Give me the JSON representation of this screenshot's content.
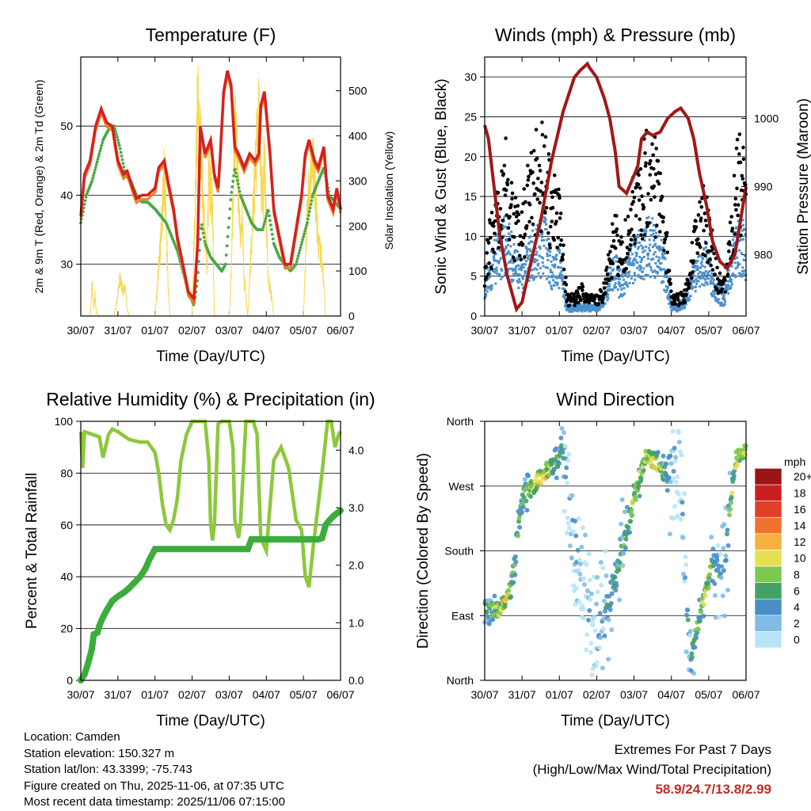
{
  "colors": {
    "temp2m": "#d62020",
    "temp9m": "#f08020",
    "dew": "#48a848",
    "solar": "#f8d850",
    "wind": "#4a90cc",
    "gust": "#000000",
    "pressure": "#a01818",
    "rh": "#8cc83c",
    "precip": "#3cac3c",
    "extremes": "#c62828"
  },
  "chart_data": [
    {
      "id": "temperature",
      "type": "line",
      "title": "Temperature (F)",
      "xlabel": "Time (Day/UTC)",
      "ylabel": "2m & 9m T (Red, Orange) & 2m Td (Green)",
      "y2label": "Solar Insolation (Yellow)",
      "x_ticks": [
        "30/07",
        "31/07",
        "01/07",
        "02/07",
        "03/07",
        "04/07",
        "05/07",
        "06/07"
      ],
      "ylim": [
        22.5,
        60
      ],
      "y_ticks": [
        30,
        40,
        50
      ],
      "y2lim": [
        0,
        575
      ],
      "y2_ticks": [
        0,
        100,
        200,
        300,
        400,
        500
      ],
      "series": [
        {
          "name": "2m T",
          "x": [
            0,
            0.1,
            0.25,
            0.4,
            0.55,
            0.7,
            0.85,
            1.0,
            1.15,
            1.25,
            1.4,
            1.5,
            1.65,
            1.8,
            2.0,
            2.1,
            2.25,
            2.35,
            2.5,
            2.6,
            2.75,
            2.9,
            3.05,
            3.15,
            3.22,
            3.35,
            3.5,
            3.6,
            3.7,
            3.75,
            3.85,
            3.95,
            4.05,
            4.15,
            4.25,
            4.4,
            4.55,
            4.7,
            4.8,
            4.85,
            4.95,
            5.1,
            5.2,
            5.35,
            5.5,
            5.65,
            5.8,
            5.95,
            6.05,
            6.15,
            6.3,
            6.4,
            6.55,
            6.65,
            6.8,
            6.9,
            7.0
          ],
          "values": [
            37,
            43,
            45,
            50,
            52.5,
            50.5,
            50,
            45,
            43,
            43.5,
            41,
            39.5,
            40,
            40,
            41,
            44,
            45,
            42,
            38,
            34,
            30,
            26,
            25,
            33,
            50,
            46,
            48,
            43,
            41,
            45,
            55,
            58,
            56,
            47,
            46,
            44,
            46,
            45,
            46,
            53,
            55,
            46,
            38,
            34,
            30,
            30,
            35,
            40,
            46,
            48,
            45,
            44,
            47,
            40,
            38,
            41,
            38
          ]
        },
        {
          "name": "2m Td",
          "x": [
            0,
            0.15,
            0.3,
            0.45,
            0.6,
            0.75,
            0.9,
            1.05,
            1.2,
            1.35,
            1.5,
            1.65,
            1.8,
            2.0,
            2.15,
            2.3,
            2.45,
            2.6,
            2.75,
            2.9,
            3.05,
            3.15,
            3.25,
            3.35,
            3.5,
            3.65,
            3.8,
            3.9,
            4.05,
            4.15,
            4.3,
            4.45,
            4.6,
            4.75,
            4.9,
            5.05,
            5.2,
            5.35,
            5.5,
            5.65,
            5.8,
            5.95,
            6.1,
            6.25,
            6.4,
            6.55,
            6.7,
            6.85,
            7.0
          ],
          "values": [
            36,
            40,
            42,
            45,
            48,
            49.5,
            50,
            47,
            43,
            42,
            40,
            39,
            39,
            38,
            37,
            36,
            34,
            32,
            29,
            26,
            24,
            28,
            36,
            33,
            31,
            30,
            29,
            30,
            40,
            44,
            40,
            38,
            36,
            35,
            35,
            38,
            33,
            31,
            30,
            29,
            30,
            33,
            36,
            40,
            42,
            44,
            40,
            39,
            38
          ]
        },
        {
          "name": "Solar",
          "axis": "y2",
          "x": [
            0,
            0.25,
            0.28,
            0.3,
            0.35,
            0.38,
            0.42,
            0.5,
            0.9,
            1.0,
            1.05,
            1.15,
            1.2,
            1.25,
            1.3,
            1.5,
            1.8,
            2.0,
            2.15,
            2.2,
            2.25,
            2.3,
            2.35,
            2.4,
            2.7,
            3.0,
            3.05,
            3.15,
            3.25,
            3.3,
            3.4,
            3.45,
            3.55,
            3.6,
            3.8,
            4.0,
            4.05,
            4.15,
            4.25,
            4.3,
            4.35,
            4.4,
            4.5,
            4.6,
            4.7,
            4.8,
            4.85,
            4.9,
            4.95,
            5.05,
            5.15,
            5.2,
            5.3,
            5.35,
            5.5,
            6.0,
            6.1,
            6.25,
            6.4,
            6.5,
            6.6,
            6.7,
            7.0
          ],
          "values": [
            0,
            0,
            40,
            100,
            20,
            60,
            10,
            0,
            0,
            60,
            100,
            70,
            80,
            20,
            0,
            0,
            0,
            0,
            200,
            300,
            400,
            250,
            100,
            0,
            0,
            0,
            200,
            580,
            450,
            300,
            150,
            400,
            300,
            0,
            0,
            0,
            100,
            540,
            350,
            200,
            300,
            100,
            0,
            200,
            400,
            550,
            400,
            300,
            450,
            100,
            50,
            0,
            0,
            0,
            0,
            0,
            300,
            450,
            200,
            150,
            0,
            0,
            0
          ]
        }
      ]
    },
    {
      "id": "winds",
      "type": "scatter",
      "title": "Winds (mph) & Pressure (mb)",
      "xlabel": "Time (Day/UTC)",
      "ylabel": "Sonic Wind & Gust (Blue, Black)",
      "y2label": "Station Pressure (Maroon)",
      "x_ticks": [
        "30/07",
        "31/07",
        "01/07",
        "02/07",
        "03/07",
        "04/07",
        "05/07",
        "06/07"
      ],
      "ylim": [
        0,
        32.5
      ],
      "y_ticks": [
        0,
        5,
        10,
        15,
        20,
        25,
        30
      ],
      "y2lim": [
        971,
        1009
      ],
      "y2_ticks": [
        980,
        990,
        1000
      ],
      "series": [
        {
          "name": "Pressure",
          "axis": "y2",
          "x": [
            0,
            0.1,
            0.25,
            0.4,
            0.6,
            0.85,
            1.0,
            1.2,
            1.5,
            1.8,
            2.1,
            2.4,
            2.55,
            2.75,
            2.8,
            3.0,
            3.2,
            3.35,
            3.5,
            3.6,
            3.8,
            3.95,
            4.1,
            4.2,
            4.35,
            4.5,
            4.7,
            4.9,
            5.1,
            5.25,
            5.45,
            5.6,
            5.75,
            5.95,
            6.1,
            6.3,
            6.5,
            6.7,
            6.85,
            7.0
          ],
          "values": [
            999,
            997,
            990,
            983,
            977,
            972,
            973,
            978,
            985,
            994,
            1001,
            1006,
            1007,
            1008,
            1007.5,
            1006,
            1003,
            1000,
            995,
            990,
            989,
            991,
            993,
            997,
            998,
            997.5,
            998,
            1000,
            1001,
            1001.5,
            1000,
            997,
            992,
            987,
            982,
            979,
            978,
            980,
            985,
            990
          ]
        },
        {
          "name": "Wind mean",
          "x": [
            0,
            0.2,
            0.4,
            0.6,
            0.8,
            1.0,
            1.2,
            1.4,
            1.6,
            1.8,
            2.0,
            2.2,
            2.4,
            2.6,
            2.8,
            3.0,
            3.2,
            3.4,
            3.5,
            3.6,
            3.8,
            4.0,
            4.2,
            4.4,
            4.6,
            4.8,
            5.0,
            5.2,
            5.4,
            5.6,
            5.8,
            6.0,
            6.2,
            6.4,
            6.6,
            6.8,
            7.0
          ],
          "values": [
            4,
            6,
            8,
            9,
            6,
            5,
            7,
            8,
            9,
            6,
            6,
            1,
            1,
            1,
            1,
            1,
            2,
            5,
            6,
            4,
            5,
            7,
            8,
            9,
            8,
            6,
            1,
            1,
            2,
            5,
            7,
            6,
            3,
            2,
            6,
            9,
            8
          ]
        },
        {
          "name": "Gust mean",
          "x": [
            0,
            0.2,
            0.4,
            0.6,
            0.8,
            1.0,
            1.2,
            1.4,
            1.6,
            1.8,
            2.0,
            2.2,
            2.4,
            2.6,
            2.8,
            3.0,
            3.2,
            3.4,
            3.5,
            3.6,
            3.8,
            4.0,
            4.2,
            4.4,
            4.6,
            4.8,
            5.0,
            5.2,
            5.4,
            5.6,
            5.8,
            6.0,
            6.2,
            6.4,
            6.6,
            6.8,
            7.0
          ],
          "values": [
            6,
            10,
            14,
            17,
            11,
            10,
            15,
            17,
            18,
            12,
            14,
            2,
            2,
            3,
            2,
            2,
            3,
            8,
            10,
            7,
            9,
            13,
            15,
            18,
            16,
            12,
            2,
            2,
            3,
            8,
            12,
            11,
            5,
            3,
            10,
            17,
            14
          ]
        }
      ]
    },
    {
      "id": "humidity",
      "type": "line",
      "title": "Relative Humidity (%) & Precipitation (in)",
      "xlabel": "Time (Day/UTC)",
      "ylabel": "Percent & Total Rainfall",
      "x_ticks": [
        "30/07",
        "31/07",
        "01/07",
        "02/07",
        "03/07",
        "04/07",
        "05/07",
        "06/07"
      ],
      "ylim": [
        0,
        100
      ],
      "y_ticks": [
        0,
        20,
        40,
        60,
        80,
        100
      ],
      "y2lim": [
        0,
        4.5
      ],
      "y2_ticks": [
        "0.0",
        "1.0",
        "2.0",
        "3.0",
        "4.0"
      ],
      "series": [
        {
          "name": "RH",
          "x": [
            0,
            0.05,
            0.1,
            0.3,
            0.5,
            0.6,
            0.75,
            0.85,
            1.0,
            1.3,
            1.6,
            1.8,
            2.0,
            2.1,
            2.2,
            2.3,
            2.4,
            2.5,
            2.6,
            2.7,
            2.85,
            3.0,
            3.2,
            3.35,
            3.45,
            3.5,
            3.55,
            3.6,
            3.7,
            3.8,
            3.9,
            4.0,
            4.1,
            4.15,
            4.25,
            4.3,
            4.45,
            4.55,
            4.65,
            4.75,
            4.85,
            5.0,
            5.2,
            5.4,
            5.6,
            5.8,
            5.95,
            6.05,
            6.15,
            6.25,
            6.35,
            6.5,
            6.65,
            6.75,
            6.85,
            6.95,
            7.0
          ],
          "values": [
            96,
            82,
            96,
            95,
            94,
            86,
            95,
            97,
            96,
            93,
            92,
            92,
            88,
            80,
            68,
            60,
            58,
            62,
            70,
            85,
            95,
            100,
            100,
            100,
            85,
            60,
            54,
            60,
            99,
            100,
            100,
            100,
            90,
            62,
            55,
            60,
            100,
            100,
            100,
            95,
            55,
            50,
            85,
            90,
            82,
            62,
            58,
            40,
            36,
            50,
            62,
            80,
            100,
            100,
            90,
            95,
            96
          ]
        },
        {
          "name": "Precip",
          "axis": "y2",
          "x": [
            0,
            0.1,
            0.2,
            0.3,
            0.35,
            0.45,
            0.5,
            0.6,
            0.7,
            0.85,
            1.0,
            1.15,
            1.3,
            1.45,
            1.6,
            1.75,
            1.85,
            1.95,
            2.0,
            2.5,
            3.0,
            3.5,
            4.0,
            4.5,
            4.6,
            5.0,
            5.5,
            6.0,
            6.2,
            6.4,
            6.5,
            6.6,
            6.7,
            6.8,
            6.9,
            7.0
          ],
          "values": [
            0,
            0.1,
            0.3,
            0.55,
            0.8,
            0.83,
            0.95,
            1.1,
            1.22,
            1.38,
            1.46,
            1.52,
            1.6,
            1.7,
            1.8,
            1.95,
            2.1,
            2.22,
            2.28,
            2.28,
            2.28,
            2.28,
            2.28,
            2.28,
            2.45,
            2.45,
            2.45,
            2.45,
            2.45,
            2.45,
            2.47,
            2.7,
            2.78,
            2.85,
            2.9,
            2.95
          ]
        }
      ]
    },
    {
      "id": "wind_direction",
      "type": "scatter",
      "title": "Wind Direction",
      "xlabel": "Time (Day/UTC)",
      "ylabel": "Direction (Colored By Speed)",
      "x_ticks": [
        "30/07",
        "31/07",
        "01/07",
        "02/07",
        "03/07",
        "04/07",
        "05/07",
        "06/07"
      ],
      "ylim": [
        0,
        360
      ],
      "y_ticks": [
        "North",
        "East",
        "South",
        "West",
        "North"
      ],
      "legend": {
        "title": "mph",
        "labels": [
          "0",
          "2",
          "4",
          "6",
          "8",
          "10",
          "12",
          "14",
          "16",
          "18",
          "20+"
        ],
        "colors": [
          "#b8e4f8",
          "#7fbde6",
          "#4a8ec8",
          "#42a264",
          "#7cc850",
          "#e6e050",
          "#f8b040",
          "#f07030",
          "#e04028",
          "#c82020",
          "#9c1414"
        ]
      },
      "series": [
        {
          "name": "Direction mean",
          "x": [
            0,
            0.3,
            0.5,
            0.7,
            1.0,
            1.3,
            1.6,
            1.9,
            2.1,
            2.4,
            2.7,
            3.0,
            3.3,
            3.5,
            3.7,
            4.0,
            4.3,
            4.6,
            4.9,
            5.2,
            5.5,
            5.8,
            6.1,
            6.4,
            6.7,
            7.0
          ],
          "values": [
            100,
            95,
            110,
            125,
            250,
            270,
            290,
            300,
            320,
            200,
            120,
            60,
            100,
            140,
            190,
            250,
            310,
            305,
            280,
            320,
            30,
            100,
            160,
            150,
            305,
            320
          ]
        }
      ]
    }
  ],
  "footer": {
    "location": "Location: Camden",
    "elevation": "Station elevation: 150.327 m",
    "latlon": "Station lat/lon: 43.3399; -75.743",
    "created": "Figure created on Thu, 2025-11-06, at 07:35 UTC",
    "recent": "Most recent data timestamp: 2025/11/06 07:15:00",
    "extremes_title": "Extremes For Past 7 Days",
    "extremes_subtitle": "(High/Low/Max Wind/Total Precipitation)",
    "extremes_values": "58.9/24.7/13.8/2.99"
  }
}
